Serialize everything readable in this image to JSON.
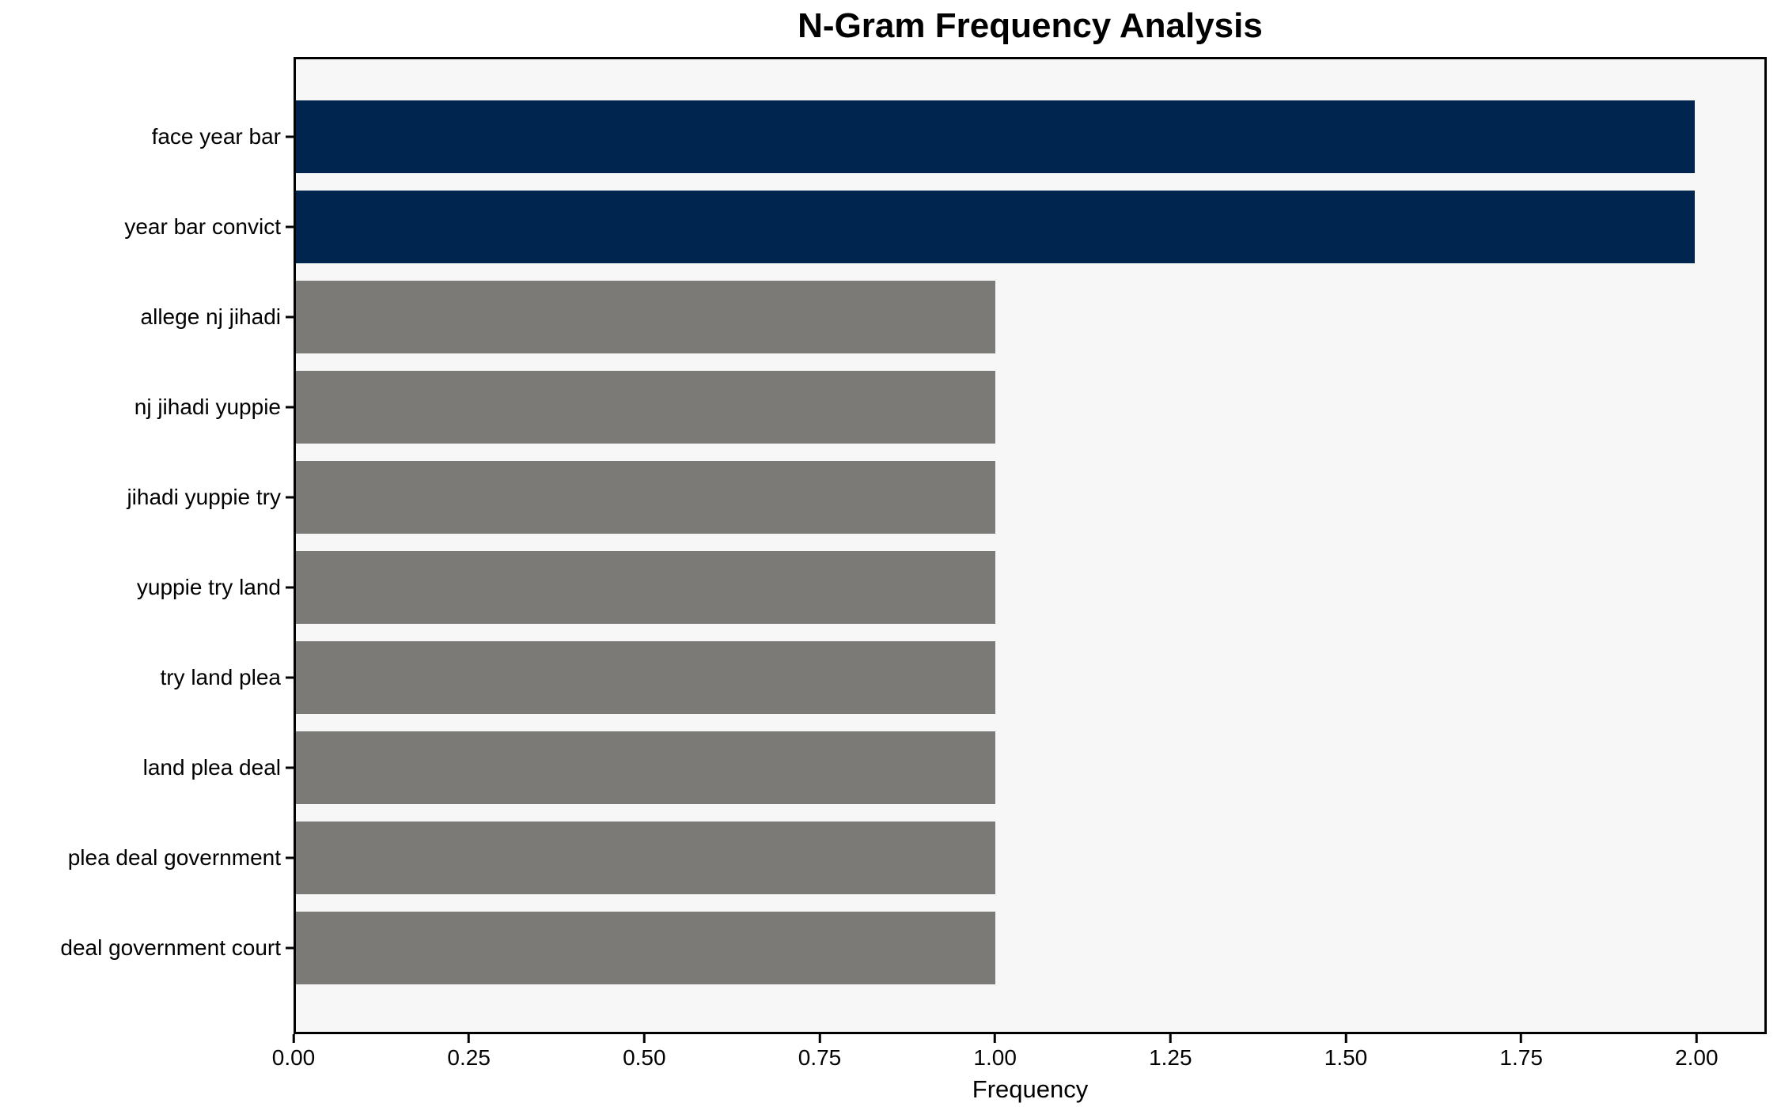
{
  "figure": {
    "background_color": "#ffffff",
    "plot_background_color": "#f7f7f7",
    "spine_color": "#000000",
    "text_color": "#000000"
  },
  "chart_data": {
    "type": "bar",
    "orientation": "horizontal",
    "title": "N-Gram Frequency Analysis",
    "xlabel": "Frequency",
    "ylabel": "",
    "categories": [
      "face year bar",
      "year bar convict",
      "allege nj jihadi",
      "nj jihadi yuppie",
      "jihadi yuppie try",
      "yuppie try land",
      "try land plea",
      "land plea deal",
      "plea deal government",
      "deal government court"
    ],
    "values": [
      2,
      2,
      1,
      1,
      1,
      1,
      1,
      1,
      1,
      1
    ],
    "bar_colors": [
      "#00254e",
      "#00254e",
      "#7b7a77",
      "#7b7a77",
      "#7b7a77",
      "#7b7a77",
      "#7b7a77",
      "#7b7a77",
      "#7b7a77",
      "#7b7a77"
    ],
    "colors": {
      "highlight": "#00254e",
      "default": "#7b7a77"
    },
    "xlim": [
      0,
      2.1
    ],
    "xtick_values": [
      0,
      0.25,
      0.5,
      0.75,
      1.0,
      1.25,
      1.5,
      1.75,
      2.0
    ],
    "xtick_labels": [
      "0.00",
      "0.25",
      "0.50",
      "0.75",
      "1.00",
      "1.25",
      "1.50",
      "1.75",
      "2.00"
    ],
    "grid": false,
    "legend": null
  }
}
